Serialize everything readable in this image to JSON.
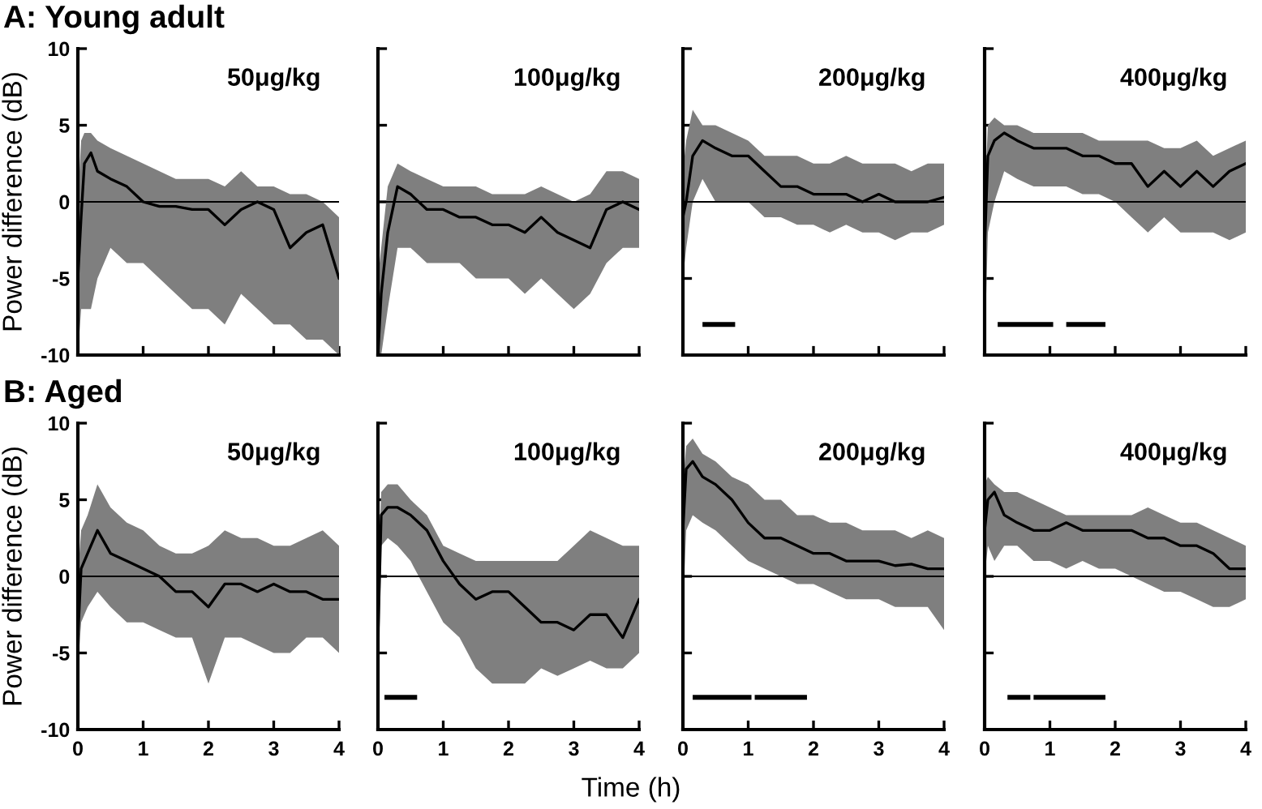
{
  "chart_data": [
    {
      "type": "line",
      "title": "50μg/kg",
      "annotations": [
        "A: Young adult"
      ],
      "ylabel": "Power difference (dB)",
      "xlim": [
        0,
        4
      ],
      "xticks": [
        0,
        1,
        2,
        3,
        4
      ],
      "ylim": [
        -10,
        10
      ],
      "yticks": [
        -10,
        -5,
        0,
        5,
        10
      ],
      "tick_labels": "y",
      "grid": false,
      "legend": false,
      "ref_lines": [
        {
          "axis": "y",
          "value": 0,
          "color": "#000000"
        }
      ],
      "x": [
        0,
        0.05,
        0.1,
        0.2,
        0.3,
        0.5,
        0.75,
        1,
        1.25,
        1.5,
        1.75,
        2,
        2.25,
        2.5,
        2.75,
        3,
        3.25,
        3.5,
        3.75,
        4
      ],
      "series": [
        {
          "color": "#000000",
          "values": [
            -5,
            -1,
            2.5,
            3.2,
            2,
            1.5,
            1,
            0,
            -0.3,
            -0.3,
            -0.5,
            -0.5,
            -1.5,
            -0.5,
            0,
            -0.5,
            -3,
            -2,
            -1.5,
            -5
          ],
          "lower": [
            -10,
            -7,
            -7,
            -7,
            -5,
            -3,
            -4,
            -4,
            -5,
            -6,
            -7,
            -7,
            -8,
            -6,
            -7,
            -8,
            -8,
            -9,
            -9,
            -10
          ],
          "upper": [
            0,
            4,
            4.5,
            4.5,
            4,
            3.5,
            3,
            2.5,
            2,
            1.5,
            1.5,
            1.5,
            1,
            2,
            1,
            1,
            0.5,
            0.5,
            0,
            -1
          ]
        }
      ]
    },
    {
      "type": "line",
      "title": "100μg/kg",
      "xlim": [
        0,
        4
      ],
      "xticks": [
        0,
        1,
        2,
        3,
        4
      ],
      "ylim": [
        -10,
        10
      ],
      "yticks": [
        -10,
        -5,
        0,
        5,
        10
      ],
      "tick_labels": false,
      "grid": false,
      "legend": false,
      "ref_lines": [
        {
          "axis": "y",
          "value": 0,
          "color": "#000000"
        }
      ],
      "x": [
        0,
        0.05,
        0.15,
        0.3,
        0.5,
        0.75,
        1,
        1.25,
        1.5,
        1.75,
        2,
        2.25,
        2.5,
        2.75,
        3,
        3.25,
        3.5,
        3.75,
        4
      ],
      "series": [
        {
          "color": "#000000",
          "values": [
            -10,
            -6,
            -2,
            1,
            0.5,
            -0.5,
            -0.5,
            -1,
            -1,
            -1.5,
            -1.5,
            -2,
            -1,
            -2,
            -2.5,
            -3,
            -0.5,
            0,
            -0.5
          ],
          "lower": [
            -10,
            -10,
            -7,
            -3,
            -3,
            -4,
            -4,
            -4,
            -5,
            -5,
            -5,
            -6,
            -5,
            -6,
            -7,
            -6,
            -4,
            -3,
            -3
          ],
          "upper": [
            -5,
            -3,
            1,
            2.5,
            2,
            1.5,
            1,
            1,
            1,
            0.5,
            0.5,
            0.5,
            1,
            0.5,
            0,
            0.5,
            2,
            2,
            1.5
          ]
        }
      ]
    },
    {
      "type": "line",
      "title": "200μg/kg",
      "xlim": [
        0,
        4
      ],
      "xticks": [
        0,
        1,
        2,
        3,
        4
      ],
      "ylim": [
        -10,
        10
      ],
      "yticks": [
        -10,
        -5,
        0,
        5,
        10
      ],
      "tick_labels": false,
      "grid": false,
      "legend": false,
      "ref_lines": [
        {
          "axis": "y",
          "value": 0,
          "color": "#000000"
        }
      ],
      "x": [
        0,
        0.05,
        0.15,
        0.3,
        0.5,
        0.75,
        1,
        1.25,
        1.5,
        1.75,
        2,
        2.25,
        2.5,
        2.75,
        3,
        3.25,
        3.5,
        3.75,
        4
      ],
      "series": [
        {
          "color": "#000000",
          "values": [
            -1,
            0,
            3,
            4,
            3.5,
            3,
            3,
            2,
            1,
            1,
            0.5,
            0.5,
            0.5,
            0,
            0.5,
            0,
            0,
            0,
            0.3
          ],
          "lower": [
            -5,
            -3,
            0,
            1.5,
            0,
            0,
            0,
            -1,
            -1,
            -1.5,
            -1.5,
            -2,
            -1.5,
            -2,
            -2,
            -2.5,
            -2,
            -2,
            -1.5
          ],
          "upper": [
            2,
            4,
            6,
            5,
            5,
            4.5,
            4,
            3,
            3,
            3,
            2.5,
            2.5,
            3,
            2.5,
            2.5,
            2.5,
            2,
            2.5,
            2.5
          ]
        },
        {
          "type": "line",
          "color": "#000000",
          "x": [
            0.3,
            0.8
          ],
          "values": [
            -8,
            -8
          ]
        }
      ]
    },
    {
      "type": "line",
      "title": "400μg/kg",
      "xlim": [
        0,
        4
      ],
      "xticks": [
        0,
        1,
        2,
        3,
        4
      ],
      "ylim": [
        -10,
        10
      ],
      "yticks": [
        -10,
        -5,
        0,
        5,
        10
      ],
      "tick_labels": false,
      "grid": false,
      "legend": false,
      "ref_lines": [
        {
          "axis": "y",
          "value": 0,
          "color": "#000000"
        }
      ],
      "x": [
        0,
        0.05,
        0.15,
        0.3,
        0.5,
        0.75,
        1,
        1.25,
        1.5,
        1.75,
        2,
        2.25,
        2.5,
        2.75,
        3,
        3.25,
        3.5,
        3.75,
        4
      ],
      "series": [
        {
          "color": "#000000",
          "values": [
            -3,
            3,
            4,
            4.5,
            4,
            3.5,
            3.5,
            3.5,
            3,
            3,
            2.5,
            2.5,
            1,
            2,
            1,
            2,
            1,
            2,
            2.5
          ],
          "lower": [
            -10,
            -2,
            0,
            2,
            1.5,
            1,
            1,
            1,
            0.5,
            0.5,
            0,
            -1,
            -2,
            -1,
            -2,
            -2,
            -2,
            -2.5,
            -2
          ],
          "upper": [
            0,
            5,
            5.5,
            5,
            5,
            4.5,
            4.5,
            4.5,
            4.5,
            4,
            4,
            4,
            4,
            3.5,
            3.5,
            4,
            3,
            3.5,
            4
          ]
        },
        {
          "type": "line",
          "color": "#000000",
          "x": [
            0.2,
            1.05,
            1.15,
            1.25,
            1.85
          ],
          "values": [
            -8,
            -8,
            null,
            -8,
            -8
          ]
        }
      ]
    },
    {
      "type": "line",
      "title": "50μg/kg",
      "annotations": [
        "B: Aged"
      ],
      "ylabel": "Power difference (dB)",
      "xlim": [
        0,
        4
      ],
      "xticks": [
        0,
        1,
        2,
        3,
        4
      ],
      "ylim": [
        -10,
        10
      ],
      "yticks": [
        -10,
        -5,
        0,
        5,
        10
      ],
      "grid": false,
      "legend": false,
      "ref_lines": [
        {
          "axis": "y",
          "value": 0,
          "color": "#000000"
        }
      ],
      "x": [
        0,
        0.05,
        0.15,
        0.3,
        0.5,
        0.75,
        1,
        1.25,
        1.5,
        1.75,
        2,
        2.25,
        2.5,
        2.75,
        3,
        3.25,
        3.5,
        3.75,
        4
      ],
      "series": [
        {
          "color": "#000000",
          "values": [
            -4,
            0.5,
            1.5,
            3,
            1.5,
            1,
            0.5,
            0,
            -1,
            -1,
            -2,
            -0.5,
            -0.5,
            -1,
            -0.5,
            -1,
            -1,
            -1.5,
            -1.5
          ],
          "lower": [
            -6,
            -3,
            -2,
            -1,
            -2,
            -3,
            -3,
            -3.5,
            -4,
            -4,
            -7,
            -4,
            -4,
            -4.5,
            -5,
            -5,
            -4,
            -4,
            -5
          ],
          "upper": [
            0,
            3,
            4,
            6,
            4.5,
            3.5,
            3,
            2,
            1.5,
            1.5,
            2,
            3,
            2.5,
            2.5,
            2,
            2,
            2.5,
            3,
            2
          ]
        }
      ]
    },
    {
      "type": "line",
      "title": "100μg/kg",
      "xlabel": "Time (h)",
      "xlim": [
        0,
        4
      ],
      "xticks": [
        0,
        1,
        2,
        3,
        4
      ],
      "ylim": [
        -10,
        10
      ],
      "yticks": [
        -10,
        -5,
        0,
        5,
        10
      ],
      "tick_labels": "x",
      "grid": false,
      "legend": false,
      "ref_lines": [
        {
          "axis": "y",
          "value": 0,
          "color": "#000000"
        }
      ],
      "x": [
        0,
        0.05,
        0.15,
        0.3,
        0.5,
        0.75,
        1,
        1.25,
        1.5,
        1.75,
        2,
        2.25,
        2.5,
        2.75,
        3,
        3.25,
        3.5,
        3.75,
        4
      ],
      "series": [
        {
          "color": "#000000",
          "values": [
            -4,
            4,
            4.5,
            4.5,
            4,
            3,
            1,
            -0.5,
            -1.5,
            -1,
            -1,
            -2,
            -3,
            -3,
            -3.5,
            -2.5,
            -2.5,
            -4,
            -1.5
          ],
          "lower": [
            -10,
            2,
            2.5,
            2,
            1,
            -1,
            -3,
            -4,
            -6,
            -7,
            -7,
            -7,
            -6,
            -6.5,
            -6,
            -5.5,
            -6,
            -6,
            -5
          ],
          "upper": [
            0,
            5.5,
            6,
            6,
            5,
            4,
            2,
            1.5,
            1,
            1,
            1,
            1,
            1,
            1,
            2,
            3,
            2.5,
            2,
            2
          ]
        },
        {
          "type": "line",
          "color": "#000000",
          "x": [
            0.1,
            0.6
          ],
          "values": [
            -7.9,
            -7.9
          ]
        }
      ]
    },
    {
      "type": "line",
      "title": "200μg/kg",
      "xlim": [
        0,
        4
      ],
      "xticks": [
        0,
        1,
        2,
        3,
        4
      ],
      "ylim": [
        -10,
        10
      ],
      "yticks": [
        -10,
        -5,
        0,
        5,
        10
      ],
      "tick_labels": "x",
      "grid": false,
      "legend": false,
      "ref_lines": [
        {
          "axis": "y",
          "value": 0,
          "color": "#000000"
        }
      ],
      "x": [
        0,
        0.05,
        0.15,
        0.3,
        0.5,
        0.75,
        1,
        1.25,
        1.5,
        1.75,
        2,
        2.25,
        2.5,
        2.75,
        3,
        3.25,
        3.5,
        3.75,
        4
      ],
      "series": [
        {
          "color": "#000000",
          "values": [
            3,
            7,
            7.5,
            6.5,
            6,
            5,
            3.5,
            2.5,
            2.5,
            2,
            1.5,
            1.5,
            1,
            1,
            1,
            0.7,
            0.8,
            0.5,
            0.5
          ],
          "lower": [
            -2,
            3,
            4,
            3.5,
            3,
            2,
            1,
            0.5,
            0,
            -0.5,
            -0.5,
            -1,
            -1.5,
            -1.5,
            -1.5,
            -2,
            -2,
            -2,
            -3.5
          ],
          "upper": [
            6,
            8.5,
            9,
            8,
            7.5,
            6.5,
            6,
            5,
            5,
            4,
            4,
            3.5,
            3.5,
            3,
            3,
            3,
            2.5,
            3,
            2.5
          ]
        },
        {
          "type": "line",
          "color": "#000000",
          "x": [
            0.15,
            1.05,
            1.08,
            1.1,
            1.9
          ],
          "values": [
            -7.9,
            -7.9,
            null,
            -7.9,
            -7.9
          ]
        }
      ]
    },
    {
      "type": "line",
      "title": "400μg/kg",
      "xlim": [
        0,
        4
      ],
      "xticks": [
        0,
        1,
        2,
        3,
        4
      ],
      "ylim": [
        -10,
        10
      ],
      "yticks": [
        -10,
        -5,
        0,
        5,
        10
      ],
      "tick_labels": "x",
      "grid": false,
      "legend": false,
      "ref_lines": [
        {
          "axis": "y",
          "value": 0,
          "color": "#000000"
        }
      ],
      "x": [
        0,
        0.05,
        0.15,
        0.3,
        0.5,
        0.75,
        1,
        1.25,
        1.5,
        1.75,
        2,
        2.25,
        2.5,
        2.75,
        3,
        3.25,
        3.5,
        3.75,
        4
      ],
      "series": [
        {
          "color": "#000000",
          "values": [
            3,
            5,
            5.5,
            4,
            3.5,
            3,
            3,
            3.5,
            3,
            3,
            3,
            3,
            2.5,
            2.5,
            2,
            2,
            1.5,
            0.5,
            0.5
          ],
          "lower": [
            0,
            2,
            1,
            2,
            2,
            1,
            1,
            0.5,
            1,
            0.5,
            0.5,
            0,
            -0.5,
            -1,
            -1,
            -1.5,
            -2,
            -2,
            -1.5
          ],
          "upper": [
            6,
            6.5,
            6,
            5.5,
            5.5,
            5,
            4.5,
            4,
            4,
            4,
            4,
            4,
            4.5,
            4,
            3.5,
            3.5,
            3,
            2.5,
            2
          ]
        },
        {
          "type": "line",
          "color": "#000000",
          "x": [
            0.35,
            0.7,
            0.72,
            0.75,
            1.85
          ],
          "values": [
            -7.9,
            -7.9,
            null,
            -7.9,
            -7.9
          ]
        }
      ]
    }
  ]
}
